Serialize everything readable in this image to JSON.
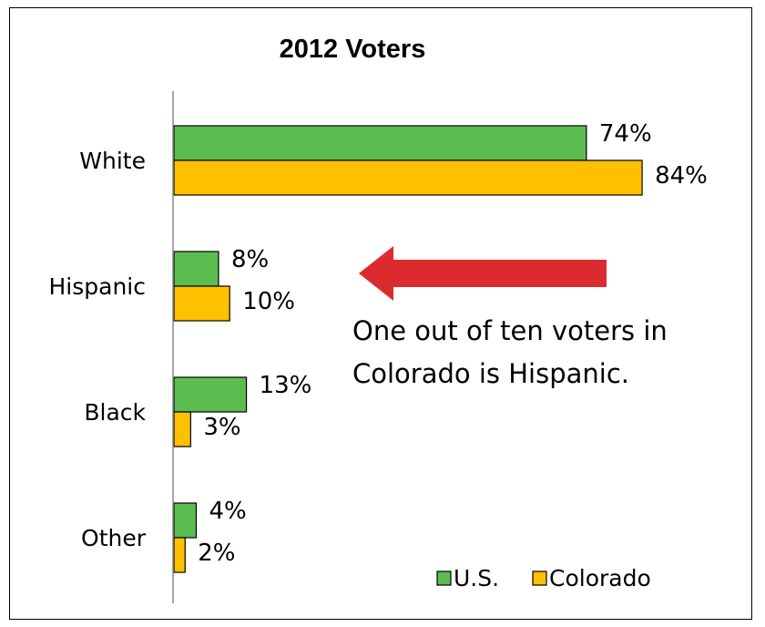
{
  "chart_data": {
    "type": "bar",
    "orientation": "horizontal",
    "title": "2012 Voters",
    "categories": [
      "White",
      "Hispanic",
      "Black",
      "Other"
    ],
    "series": [
      {
        "name": "U.S.",
        "color": "#5bbd4f",
        "values": [
          74,
          8,
          13,
          4
        ],
        "labels": [
          "74%",
          "8%",
          "13%",
          "4%"
        ]
      },
      {
        "name": "Colorado",
        "color": "#ffc000",
        "values": [
          84,
          10,
          3,
          2
        ],
        "labels": [
          "84%",
          "10%",
          "3%",
          "2%"
        ]
      }
    ],
    "xlim": [
      0,
      100
    ],
    "grid": false,
    "legend_position": "bottom-right",
    "annotation": {
      "lines": [
        "One out of ten voters in",
        "Colorado is Hispanic."
      ],
      "arrow_color": "#dc2b2f",
      "arrow_direction": "left"
    }
  }
}
